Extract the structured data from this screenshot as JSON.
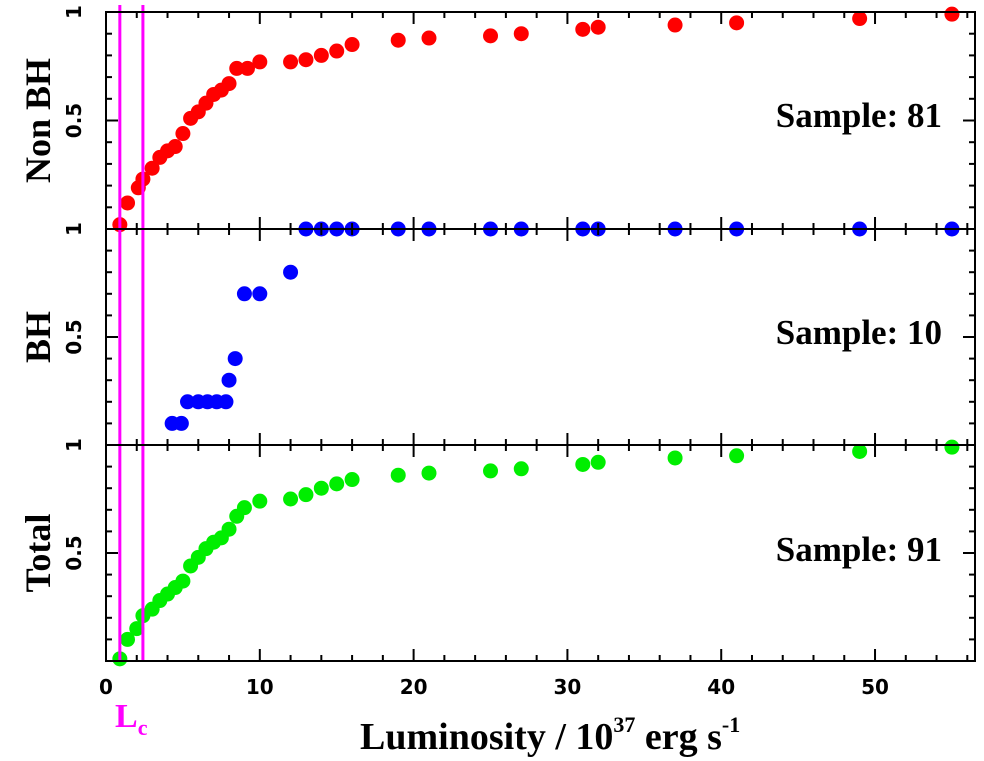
{
  "chart_data": {
    "type": "scatter",
    "xlabel_main": "Luminosity / 10",
    "xlabel_exp": "37",
    "xlabel_unit": " erg s",
    "xlabel_unit_exp": "-1",
    "xlim": [
      0,
      56.5
    ],
    "x_ticks": [
      "0",
      "10",
      "20",
      "30",
      "40",
      "50"
    ],
    "x_tick_values": [
      0,
      10,
      20,
      30,
      40,
      50
    ],
    "vlines": [
      {
        "x": 0.9,
        "color": "#ff00ff"
      },
      {
        "x": 2.4,
        "color": "#ff00ff"
      }
    ],
    "lc_label": {
      "text": "L",
      "sub": "c",
      "color": "#ff00ff"
    },
    "panels": [
      {
        "name": "Non BH",
        "sample_text": "Sample: 81",
        "color": "#ff0000",
        "ylim": [
          0,
          1
        ],
        "y_ticks": [
          "0.5",
          "1"
        ],
        "y_tick_values": [
          0.5,
          1
        ],
        "points": [
          {
            "x": 0.9,
            "y": 0.02
          },
          {
            "x": 1.4,
            "y": 0.12
          },
          {
            "x": 2.1,
            "y": 0.19
          },
          {
            "x": 2.4,
            "y": 0.23
          },
          {
            "x": 3.0,
            "y": 0.28
          },
          {
            "x": 3.5,
            "y": 0.33
          },
          {
            "x": 4.0,
            "y": 0.36
          },
          {
            "x": 4.5,
            "y": 0.38
          },
          {
            "x": 5.0,
            "y": 0.44
          },
          {
            "x": 5.5,
            "y": 0.51
          },
          {
            "x": 6.0,
            "y": 0.54
          },
          {
            "x": 6.5,
            "y": 0.58
          },
          {
            "x": 7.0,
            "y": 0.62
          },
          {
            "x": 7.5,
            "y": 0.64
          },
          {
            "x": 8.0,
            "y": 0.67
          },
          {
            "x": 8.5,
            "y": 0.74
          },
          {
            "x": 9.2,
            "y": 0.74
          },
          {
            "x": 10.0,
            "y": 0.77
          },
          {
            "x": 12.0,
            "y": 0.77
          },
          {
            "x": 13.0,
            "y": 0.78
          },
          {
            "x": 14.0,
            "y": 0.8
          },
          {
            "x": 15.0,
            "y": 0.82
          },
          {
            "x": 16.0,
            "y": 0.85
          },
          {
            "x": 19.0,
            "y": 0.87
          },
          {
            "x": 21.0,
            "y": 0.88
          },
          {
            "x": 25.0,
            "y": 0.89
          },
          {
            "x": 27.0,
            "y": 0.9
          },
          {
            "x": 31.0,
            "y": 0.92
          },
          {
            "x": 32.0,
            "y": 0.93
          },
          {
            "x": 37.0,
            "y": 0.94
          },
          {
            "x": 41.0,
            "y": 0.95
          },
          {
            "x": 49.0,
            "y": 0.97
          },
          {
            "x": 55.0,
            "y": 0.99
          }
        ]
      },
      {
        "name": "BH",
        "sample_text": "Sample: 10",
        "color": "#0000ff",
        "ylim": [
          0,
          1
        ],
        "y_ticks": [
          "0.5",
          "1"
        ],
        "y_tick_values": [
          0.5,
          1
        ],
        "points": [
          {
            "x": 4.3,
            "y": 0.1
          },
          {
            "x": 4.9,
            "y": 0.1
          },
          {
            "x": 5.3,
            "y": 0.2
          },
          {
            "x": 6.0,
            "y": 0.2
          },
          {
            "x": 6.6,
            "y": 0.2
          },
          {
            "x": 7.2,
            "y": 0.2
          },
          {
            "x": 7.8,
            "y": 0.2
          },
          {
            "x": 8.0,
            "y": 0.3
          },
          {
            "x": 8.4,
            "y": 0.4
          },
          {
            "x": 9.0,
            "y": 0.7
          },
          {
            "x": 10.0,
            "y": 0.7
          },
          {
            "x": 12.0,
            "y": 0.8
          },
          {
            "x": 13.0,
            "y": 1.0
          },
          {
            "x": 14.0,
            "y": 1.0
          },
          {
            "x": 15.0,
            "y": 1.0
          },
          {
            "x": 16.0,
            "y": 1.0
          },
          {
            "x": 19.0,
            "y": 1.0
          },
          {
            "x": 21.0,
            "y": 1.0
          },
          {
            "x": 25.0,
            "y": 1.0
          },
          {
            "x": 27.0,
            "y": 1.0
          },
          {
            "x": 31.0,
            "y": 1.0
          },
          {
            "x": 32.0,
            "y": 1.0
          },
          {
            "x": 37.0,
            "y": 1.0
          },
          {
            "x": 41.0,
            "y": 1.0
          },
          {
            "x": 49.0,
            "y": 1.0
          },
          {
            "x": 55.0,
            "y": 1.0
          }
        ]
      },
      {
        "name": "Total",
        "sample_text": "Sample: 91",
        "color": "#00ee00",
        "ylim": [
          0,
          1
        ],
        "y_ticks": [
          "0.5",
          "1"
        ],
        "y_tick_values": [
          0.5,
          1
        ],
        "points": [
          {
            "x": 0.9,
            "y": 0.01
          },
          {
            "x": 1.4,
            "y": 0.1
          },
          {
            "x": 2.0,
            "y": 0.15
          },
          {
            "x": 2.4,
            "y": 0.21
          },
          {
            "x": 3.0,
            "y": 0.24
          },
          {
            "x": 3.5,
            "y": 0.28
          },
          {
            "x": 4.0,
            "y": 0.31
          },
          {
            "x": 4.5,
            "y": 0.34
          },
          {
            "x": 5.0,
            "y": 0.37
          },
          {
            "x": 5.5,
            "y": 0.44
          },
          {
            "x": 6.0,
            "y": 0.48
          },
          {
            "x": 6.5,
            "y": 0.52
          },
          {
            "x": 7.0,
            "y": 0.55
          },
          {
            "x": 7.5,
            "y": 0.57
          },
          {
            "x": 8.0,
            "y": 0.61
          },
          {
            "x": 8.5,
            "y": 0.67
          },
          {
            "x": 9.0,
            "y": 0.71
          },
          {
            "x": 10.0,
            "y": 0.74
          },
          {
            "x": 12.0,
            "y": 0.75
          },
          {
            "x": 13.0,
            "y": 0.77
          },
          {
            "x": 14.0,
            "y": 0.8
          },
          {
            "x": 15.0,
            "y": 0.82
          },
          {
            "x": 16.0,
            "y": 0.84
          },
          {
            "x": 19.0,
            "y": 0.86
          },
          {
            "x": 21.0,
            "y": 0.87
          },
          {
            "x": 25.0,
            "y": 0.88
          },
          {
            "x": 27.0,
            "y": 0.89
          },
          {
            "x": 31.0,
            "y": 0.91
          },
          {
            "x": 32.0,
            "y": 0.92
          },
          {
            "x": 37.0,
            "y": 0.94
          },
          {
            "x": 41.0,
            "y": 0.95
          },
          {
            "x": 49.0,
            "y": 0.97
          },
          {
            "x": 55.0,
            "y": 0.99
          }
        ]
      }
    ]
  }
}
